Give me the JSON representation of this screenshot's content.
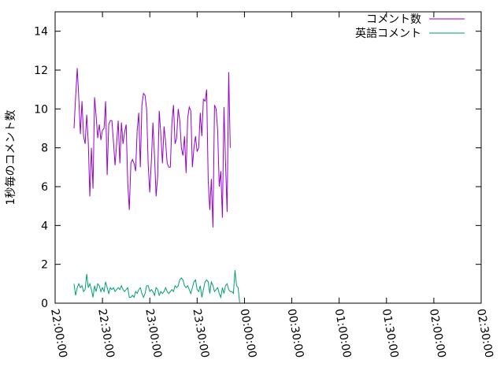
{
  "chart_data": {
    "type": "line",
    "ylabel": "1秒毎のコメント数",
    "xlabel": "",
    "title": "",
    "xlim": [
      "22:00:00",
      "02:30:00"
    ],
    "ylim": [
      0,
      15
    ],
    "x_ticks": [
      "22:00:00",
      "22:30:00",
      "23:00:00",
      "23:30:00",
      "00:00:00",
      "00:30:00",
      "01:00:00",
      "01:30:00",
      "02:00:00",
      "02:30:00"
    ],
    "y_ticks": [
      "0",
      "2",
      "4",
      "6",
      "8",
      "10",
      "12",
      "14"
    ],
    "legend_position": "top-right",
    "grid": false,
    "x_start": "22:12:00",
    "x_step_seconds": 60,
    "series": [
      {
        "name": "コメント数",
        "color": "#9400d3",
        "values": [
          9.0,
          10.6,
          12.1,
          10.5,
          8.7,
          10.4,
          8.6,
          8.2,
          9.7,
          8.3,
          5.5,
          8.0,
          5.9,
          10.6,
          9.6,
          8.5,
          9.2,
          8.4,
          8.9,
          9.0,
          10.4,
          6.6,
          9.2,
          9.4,
          9.4,
          8.3,
          7.1,
          8.2,
          9.4,
          7.2,
          9.3,
          8.2,
          8.8,
          9.2,
          6.2,
          4.8,
          7.2,
          7.4,
          7.2,
          6.8,
          8.9,
          9.8,
          7.0,
          10.2,
          10.8,
          10.7,
          10.0,
          7.1,
          5.7,
          7.3,
          9.3,
          7.6,
          5.5,
          6.5,
          9.9,
          8.7,
          7.2,
          9.1,
          8.3,
          7.2,
          7.0,
          7.0,
          9.3,
          10.2,
          8.2,
          8.5,
          10.0,
          9.4,
          8.0,
          7.6,
          8.6,
          6.7,
          9.5,
          10.1,
          9.9,
          7.0,
          8.0,
          8.6,
          7.8,
          8.0,
          9.8,
          8.6,
          10.5,
          10.4,
          11.0,
          6.3,
          4.8,
          6.4,
          3.9,
          10.2,
          10.0,
          8.9,
          6.0,
          6.8,
          4.4,
          10.1,
          7.2,
          4.7,
          11.9,
          8.0
        ]
      },
      {
        "name": "英語コメント",
        "color": "#009e73",
        "values": [
          1.0,
          0.4,
          0.8,
          1.0,
          0.8,
          0.9,
          0.6,
          0.7,
          1.5,
          0.8,
          1.0,
          0.7,
          0.3,
          0.9,
          0.6,
          1.0,
          0.9,
          0.6,
          0.8,
          0.6,
          1.1,
          0.8,
          0.5,
          0.8,
          0.7,
          0.8,
          0.6,
          0.7,
          0.8,
          0.7,
          0.9,
          0.7,
          0.6,
          0.7,
          0.8,
          0.3,
          0.3,
          0.4,
          0.3,
          0.6,
          0.5,
          0.7,
          0.8,
          0.5,
          0.3,
          0.5,
          0.9,
          0.9,
          0.6,
          0.7,
          0.6,
          0.4,
          0.8,
          0.7,
          0.4,
          0.6,
          0.5,
          0.6,
          0.8,
          0.6,
          0.5,
          0.6,
          0.7,
          0.6,
          0.9,
          0.8,
          0.9,
          1.2,
          1.3,
          1.2,
          0.9,
          0.8,
          0.9,
          0.7,
          0.5,
          0.8,
          1.1,
          1.2,
          0.7,
          0.6,
          0.9,
          0.3,
          0.7,
          1.1,
          1.2,
          1.1,
          0.5,
          1.1,
          0.9,
          0.6,
          0.7,
          0.8,
          0.5,
          0.3,
          0.8,
          0.5,
          0.9,
          1.0,
          0.7,
          0.6,
          0.6,
          0.5,
          1.7,
          0.9,
          0.8,
          0.0
        ]
      }
    ]
  }
}
